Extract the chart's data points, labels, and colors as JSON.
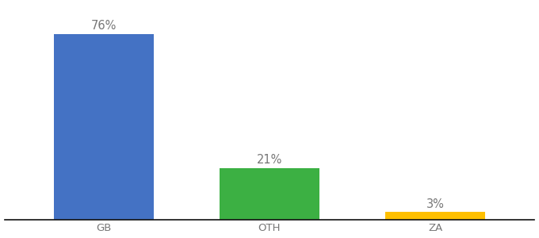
{
  "categories": [
    "GB",
    "OTH",
    "ZA"
  ],
  "values": [
    76,
    21,
    3
  ],
  "bar_colors": [
    "#4472C4",
    "#3CB043",
    "#FFC000"
  ],
  "labels": [
    "76%",
    "21%",
    "3%"
  ],
  "ylim": [
    0,
    88
  ],
  "background_color": "#ffffff",
  "bar_width": 0.6,
  "label_fontsize": 10.5,
  "tick_fontsize": 9.5,
  "label_color": "#777777",
  "tick_color": "#777777"
}
